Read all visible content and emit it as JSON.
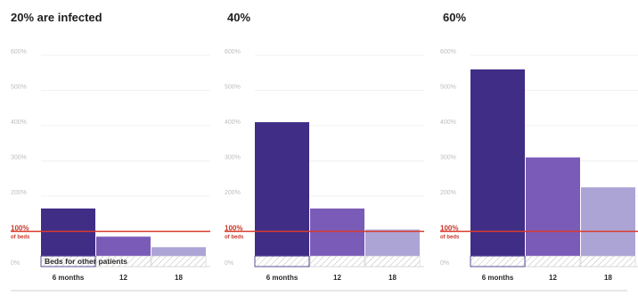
{
  "colors": {
    "series": [
      "#3f2d86",
      "#7a5bb8",
      "#ada4d6"
    ],
    "reference_line": "#d93b2b",
    "hatch": "#b9b9b9"
  },
  "chart_data": [
    {
      "type": "bar",
      "title": "20% are infected",
      "categories": [
        "6 months",
        "12",
        "18"
      ],
      "values": [
        165,
        85,
        55
      ],
      "ylim": [
        0,
        600
      ],
      "y_ticks": [
        "0%",
        "100%",
        "200%",
        "300%",
        "400%",
        "500%",
        "600%"
      ],
      "reference_value": 100,
      "reference_label": "100%",
      "reference_sublabel": "of beds",
      "reserved_value": 30,
      "reserved_label": "Beds for other patients",
      "grid": true
    },
    {
      "type": "bar",
      "title": "40%",
      "categories": [
        "6 months",
        "12",
        "18"
      ],
      "values": [
        410,
        165,
        105
      ],
      "ylim": [
        0,
        600
      ],
      "y_ticks": [
        "0%",
        "100%",
        "200%",
        "300%",
        "400%",
        "500%",
        "600%"
      ],
      "reference_value": 100,
      "reference_label": "100%",
      "reference_sublabel": "of beds",
      "reserved_value": 30,
      "grid": true
    },
    {
      "type": "bar",
      "title": "60%",
      "categories": [
        "6 months",
        "12",
        "18"
      ],
      "values": [
        560,
        310,
        225
      ],
      "ylim": [
        0,
        600
      ],
      "y_ticks": [
        "0%",
        "100%",
        "200%",
        "300%",
        "400%",
        "500%",
        "600%"
      ],
      "reference_value": 100,
      "reference_label": "100%",
      "reference_sublabel": "of beds",
      "reserved_value": 30,
      "grid": true
    }
  ]
}
